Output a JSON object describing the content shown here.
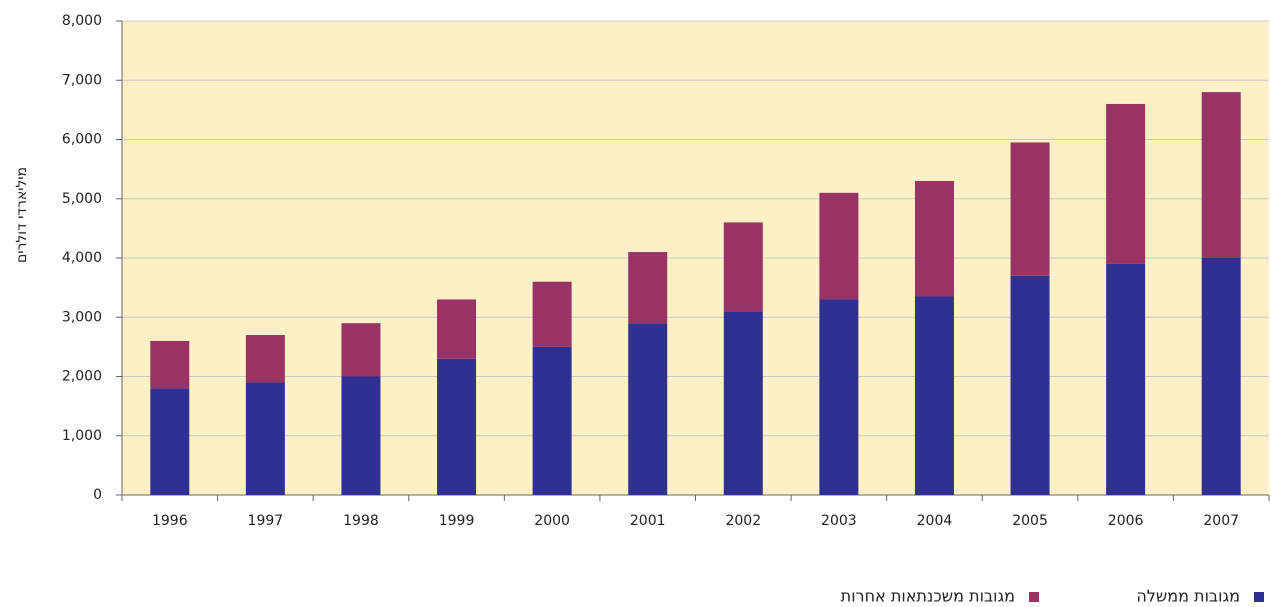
{
  "chart_data": {
    "type": "stacked_bar",
    "y_label": "מיליארדי דולרים",
    "categories": [
      "1996",
      "1997",
      "1998",
      "1999",
      "2000",
      "2001",
      "2002",
      "2003",
      "2004",
      "2005",
      "2006",
      "2007"
    ],
    "series": [
      {
        "name": "מגובות ממשלה",
        "color": "#2e3192",
        "values": [
          1800,
          1900,
          2000,
          2300,
          2500,
          2900,
          3100,
          3300,
          3350,
          3700,
          3900,
          4000
        ]
      },
      {
        "name": "מגובות משכנתאות אחרות",
        "color": "#993366",
        "values": [
          800,
          800,
          900,
          1000,
          1100,
          1200,
          1500,
          1800,
          1950,
          2250,
          2700,
          2800
        ]
      }
    ],
    "ylim": [
      0,
      8000
    ],
    "yticks": [
      0,
      {
        "value": 1000,
        "label": "1,000"
      },
      {
        "value": 2000,
        "label": "2,000"
      },
      {
        "value": 3000,
        "label": "3,000"
      },
      {
        "value": 4000,
        "label": "4,000"
      },
      {
        "value": 5000,
        "label": "5,000"
      },
      {
        "value": 6000,
        "label": "6,000"
      },
      {
        "value": 7000,
        "label": "7,000"
      },
      {
        "value": 8000,
        "label": "8,000"
      }
    ],
    "grid": true,
    "background": "#fdf0c6"
  }
}
